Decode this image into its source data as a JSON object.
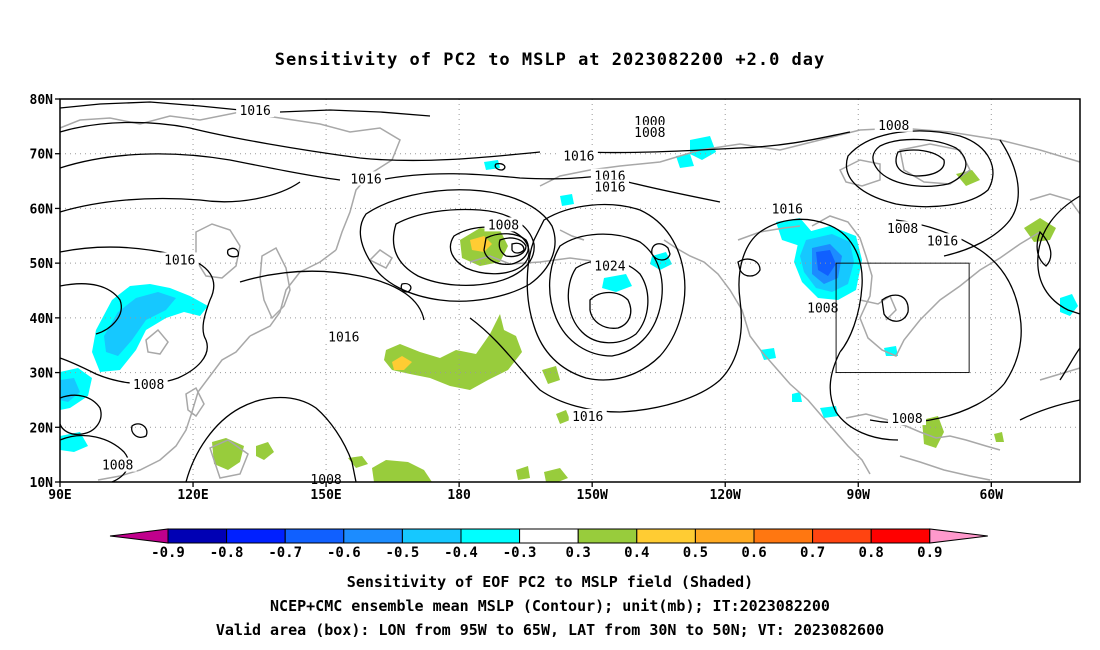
{
  "title": "Sensitivity of PC2 to MSLP at 2023082200 +2.0 day",
  "captions": {
    "line1": "Sensitivity of EOF PC2 to MSLP field (Shaded)",
    "line2": "NCEP+CMC ensemble mean MSLP (Contour); unit(mb); IT:2023082200",
    "line3": "Valid area (box): LON from 95W to 65W, LAT from 30N to 50N; VT: 2023082600"
  },
  "map": {
    "lat_labels": [
      "80N",
      "70N",
      "60N",
      "50N",
      "40N",
      "30N",
      "20N",
      "10N"
    ],
    "lon_labels": [
      "90E",
      "120E",
      "150E",
      "180",
      "150W",
      "120W",
      "90W",
      "60W"
    ],
    "lon_range": [
      90,
      320
    ],
    "lat_range": [
      10,
      80
    ],
    "valid_box": {
      "lon": [
        265,
        295
      ],
      "lat": [
        30,
        50
      ]
    },
    "contour_labels": [
      {
        "text": "1016",
        "lon": 134,
        "lat": 77.8
      },
      {
        "text": "1000",
        "lon": 223,
        "lat": 75.8
      },
      {
        "text": "1008",
        "lon": 223,
        "lat": 73.8
      },
      {
        "text": "1016",
        "lon": 207,
        "lat": 69.5
      },
      {
        "text": "1016",
        "lon": 159,
        "lat": 65.3
      },
      {
        "text": "1016",
        "lon": 214,
        "lat": 65.8
      },
      {
        "text": "1016",
        "lon": 214,
        "lat": 63.8
      },
      {
        "text": "1008",
        "lon": 190,
        "lat": 56.9
      },
      {
        "text": "1016",
        "lon": 254,
        "lat": 59.8
      },
      {
        "text": "1008",
        "lon": 278,
        "lat": 75.1
      },
      {
        "text": "1008",
        "lon": 280,
        "lat": 56.2
      },
      {
        "text": "1016",
        "lon": 289,
        "lat": 54.0
      },
      {
        "text": "1016",
        "lon": 117,
        "lat": 50.5
      },
      {
        "text": "1024",
        "lon": 214,
        "lat": 49.4
      },
      {
        "text": "1008",
        "lon": 262,
        "lat": 41.7
      },
      {
        "text": "1016",
        "lon": 154,
        "lat": 36.4
      },
      {
        "text": "1008",
        "lon": 110,
        "lat": 27.7
      },
      {
        "text": "1016",
        "lon": 209,
        "lat": 21.9
      },
      {
        "text": "1008",
        "lon": 281,
        "lat": 21.5
      },
      {
        "text": "1008",
        "lon": 103,
        "lat": 13.0
      },
      {
        "text": "1008",
        "lon": 150,
        "lat": 10.4
      }
    ]
  },
  "colorbar": {
    "labels": [
      "-0.9",
      "-0.8",
      "-0.7",
      "-0.6",
      "-0.5",
      "-0.4",
      "-0.3",
      "0.3",
      "0.4",
      "0.5",
      "0.6",
      "0.7",
      "0.8",
      "0.9"
    ],
    "colors": [
      "#0000b4",
      "#0020ff",
      "#1060ff",
      "#1c8cff",
      "#16c8ff",
      "#00ffff",
      "#ffffff",
      "#98cc3c",
      "#ffcc33",
      "#ffaa22",
      "#ff7711",
      "#ff4411",
      "#ff0000"
    ],
    "low_arrow_color": "#c0008c",
    "high_arrow_color": "#ff99cc"
  }
}
